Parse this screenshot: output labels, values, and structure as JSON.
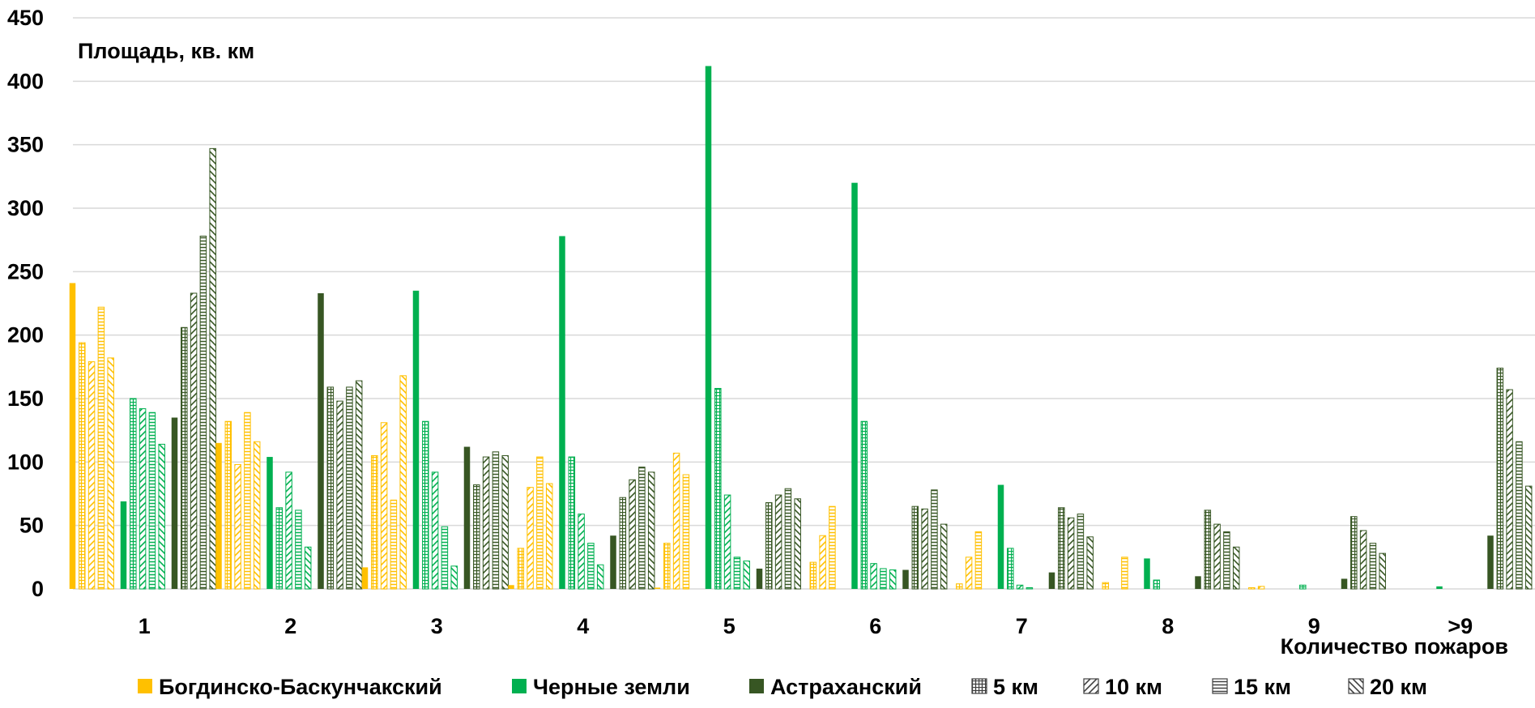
{
  "chart_data": {
    "type": "bar",
    "ylabel": "Площадь, кв. км",
    "xlabel": "Количество пожаров",
    "ylim": [
      0,
      450
    ],
    "yticks": [
      0,
      50,
      100,
      150,
      200,
      250,
      300,
      350,
      400,
      450
    ],
    "grid": true,
    "legend_position": "bottom",
    "categories": [
      "1",
      "2",
      "3",
      "4",
      "5",
      "6",
      "7",
      "8",
      "9",
      ">9"
    ],
    "legend": [
      {
        "label": "Богдинско-Баскунчакский",
        "style": "solid",
        "color": "#ffc000"
      },
      {
        "label": "Черные земли",
        "style": "solid",
        "color": "#00b050"
      },
      {
        "label": "Астраханский",
        "style": "solid",
        "color": "#375623"
      },
      {
        "label": "5 км",
        "style": "grid",
        "color": "#404040"
      },
      {
        "label": "10 км",
        "style": "diag-down",
        "color": "#404040"
      },
      {
        "label": "15 км",
        "style": "hlines",
        "color": "#404040"
      },
      {
        "label": "20 км",
        "style": "diag-up",
        "color": "#404040"
      }
    ],
    "groups": [
      {
        "name": "Богдинско-Баскунчакский",
        "color": "#ffc000",
        "series": [
          {
            "style": "solid",
            "values": [
              241,
              115,
              17,
              3,
              1,
              0,
              0,
              0,
              0,
              0
            ]
          },
          {
            "style": "grid",
            "values": [
              194,
              132,
              105,
              32,
              36,
              21,
              4,
              5,
              1,
              0
            ]
          },
          {
            "style": "diag-down",
            "values": [
              179,
              98,
              131,
              80,
              107,
              42,
              25,
              0,
              2,
              0
            ]
          },
          {
            "style": "hlines",
            "values": [
              222,
              139,
              70,
              104,
              90,
              65,
              45,
              25,
              0,
              0
            ]
          },
          {
            "style": "diag-up",
            "values": [
              182,
              116,
              168,
              83,
              0,
              0,
              0,
              0,
              0,
              0
            ]
          }
        ]
      },
      {
        "name": "Черные земли",
        "color": "#00b050",
        "series": [
          {
            "style": "solid",
            "values": [
              69,
              104,
              235,
              278,
              412,
              320,
              82,
              24,
              0,
              2
            ]
          },
          {
            "style": "grid",
            "values": [
              150,
              64,
              132,
              104,
              158,
              132,
              32,
              7,
              3,
              0
            ]
          },
          {
            "style": "diag-down",
            "values": [
              142,
              92,
              92,
              59,
              74,
              20,
              3,
              0,
              0,
              0
            ]
          },
          {
            "style": "hlines",
            "values": [
              139,
              62,
              49,
              36,
              25,
              16,
              1,
              0,
              0,
              0
            ]
          },
          {
            "style": "diag-up",
            "values": [
              114,
              33,
              18,
              19,
              22,
              15,
              0,
              0,
              0,
              0
            ]
          }
        ]
      },
      {
        "name": "Астраханский",
        "color": "#375623",
        "series": [
          {
            "style": "solid",
            "values": [
              135,
              233,
              112,
              42,
              16,
              15,
              13,
              10,
              8,
              42
            ]
          },
          {
            "style": "grid",
            "values": [
              206,
              159,
              82,
              72,
              68,
              65,
              64,
              62,
              57,
              174
            ]
          },
          {
            "style": "diag-down",
            "values": [
              233,
              148,
              104,
              86,
              74,
              63,
              56,
              51,
              46,
              157
            ]
          },
          {
            "style": "hlines",
            "values": [
              278,
              159,
              108,
              96,
              79,
              78,
              59,
              45,
              36,
              116
            ]
          },
          {
            "style": "diag-up",
            "values": [
              347,
              164,
              105,
              92,
              71,
              51,
              41,
              33,
              28,
              81
            ]
          }
        ]
      }
    ]
  }
}
